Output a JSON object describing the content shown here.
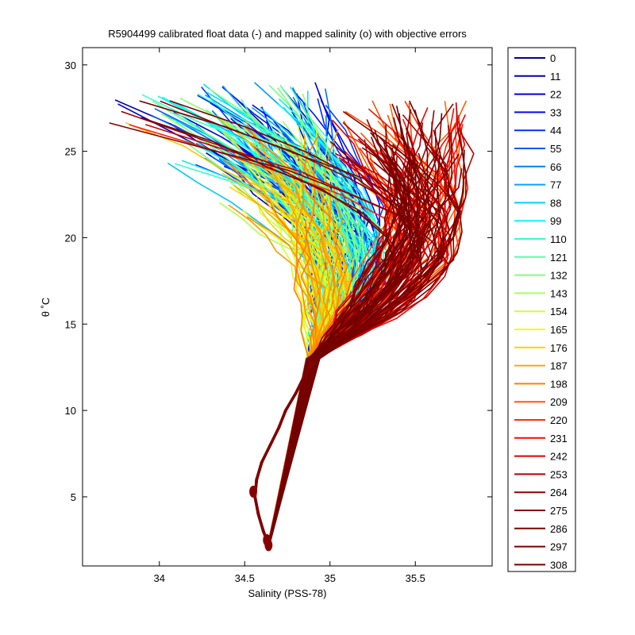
{
  "chart_data": {
    "type": "line",
    "title": "R5904499 calibrated float data (-) and mapped salinity (o) with objective errors",
    "xlabel": "Salinity (PSS-78)",
    "ylabel": "θ ˚C",
    "xlim": [
      33.55,
      35.95
    ],
    "ylim": [
      1.0,
      31.0
    ],
    "xticks": [
      34,
      34.5,
      35,
      35.5
    ],
    "xtick_labels": [
      "34",
      "34.5",
      "35",
      "35.5"
    ],
    "yticks": [
      5,
      10,
      15,
      20,
      25,
      30
    ],
    "ytick_labels": [
      "5",
      "10",
      "15",
      "20",
      "25",
      "30"
    ],
    "grid": false,
    "legend_position": "right-outside",
    "legend": [
      "0",
      "11",
      "22",
      "33",
      "44",
      "55",
      "66",
      "77",
      "88",
      "99",
      "110",
      "121",
      "132",
      "143",
      "154",
      "165",
      "176",
      "187",
      "198",
      "209",
      "220",
      "231",
      "242",
      "253",
      "264",
      "275",
      "286",
      "297",
      "308"
    ],
    "colormap": "jet",
    "legend_colors": [
      "#00008f",
      "#0000b7",
      "#0000df",
      "#0008ff",
      "#0030ff",
      "#0058ff",
      "#0080ff",
      "#00a8ff",
      "#00d0ff",
      "#08f8f8",
      "#30ffcf",
      "#58ffa7",
      "#80ff80",
      "#a8ff58",
      "#cfff30",
      "#f8f808",
      "#ffd000",
      "#ffa800",
      "#ff8000",
      "#ff5800",
      "#ff3000",
      "#ff0800",
      "#df0000",
      "#b70000",
      "#8f0000",
      "#800000",
      "#7a0000",
      "#760000",
      "#700000"
    ],
    "cycles_drawn": 309,
    "deep_profile": [
      {
        "s": 34.64,
        "t": 2.2
      },
      {
        "s": 34.61,
        "t": 3.0
      },
      {
        "s": 34.58,
        "t": 4.0
      },
      {
        "s": 34.56,
        "t": 5.0
      },
      {
        "s": 34.57,
        "t": 6.0
      },
      {
        "s": 34.6,
        "t": 7.0
      },
      {
        "s": 34.65,
        "t": 8.0
      },
      {
        "s": 34.7,
        "t": 9.0
      },
      {
        "s": 34.74,
        "t": 10.0
      },
      {
        "s": 34.8,
        "t": 11.0
      },
      {
        "s": 34.85,
        "t": 12.0
      },
      {
        "s": 34.9,
        "t": 12.8
      }
    ],
    "mapped_salinity_markers": [
      {
        "s": 34.55,
        "t": 5.3
      },
      {
        "s": 34.63,
        "t": 2.5
      },
      {
        "s": 34.64,
        "t": 2.2
      }
    ]
  }
}
